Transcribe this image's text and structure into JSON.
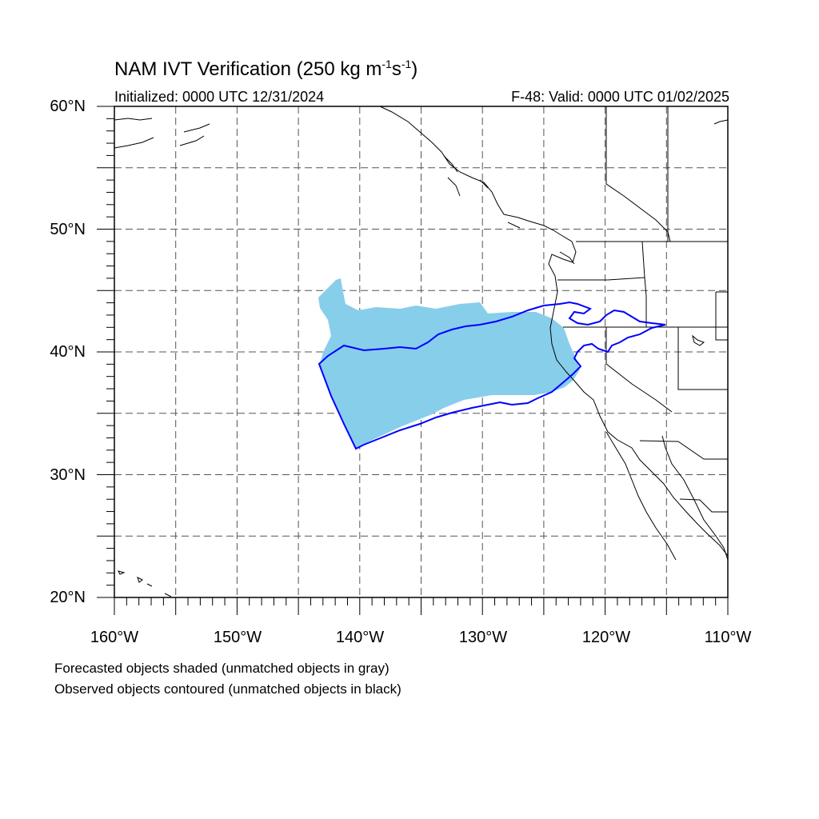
{
  "title": {
    "prefix": "NAM IVT Verification (250 kg m",
    "exp1": "-1",
    "mid": "s",
    "exp2": "-1",
    "suffix": ")"
  },
  "initialized": "Initialized: 0000 UTC 12/31/2024",
  "valid": "F-48: Valid: 0000 UTC 01/02/2025",
  "lat_labels": [
    "60°N",
    "50°N",
    "40°N",
    "30°N",
    "20°N"
  ],
  "lon_labels": [
    "160°W",
    "150°W",
    "140°W",
    "130°W",
    "120°W",
    "110°W"
  ],
  "notes": [
    "Forecasted objects shaded (unmatched objects in gray)",
    "Observed objects contoured (unmatched objects in black)"
  ],
  "map": {
    "lat_range": [
      20,
      60
    ],
    "lon_range": [
      -160,
      -110
    ],
    "grid": "dashed every 5 degrees",
    "forecast_color": "#87CEEB",
    "observed_color": "#0000FF",
    "coast_color": "#000000"
  }
}
